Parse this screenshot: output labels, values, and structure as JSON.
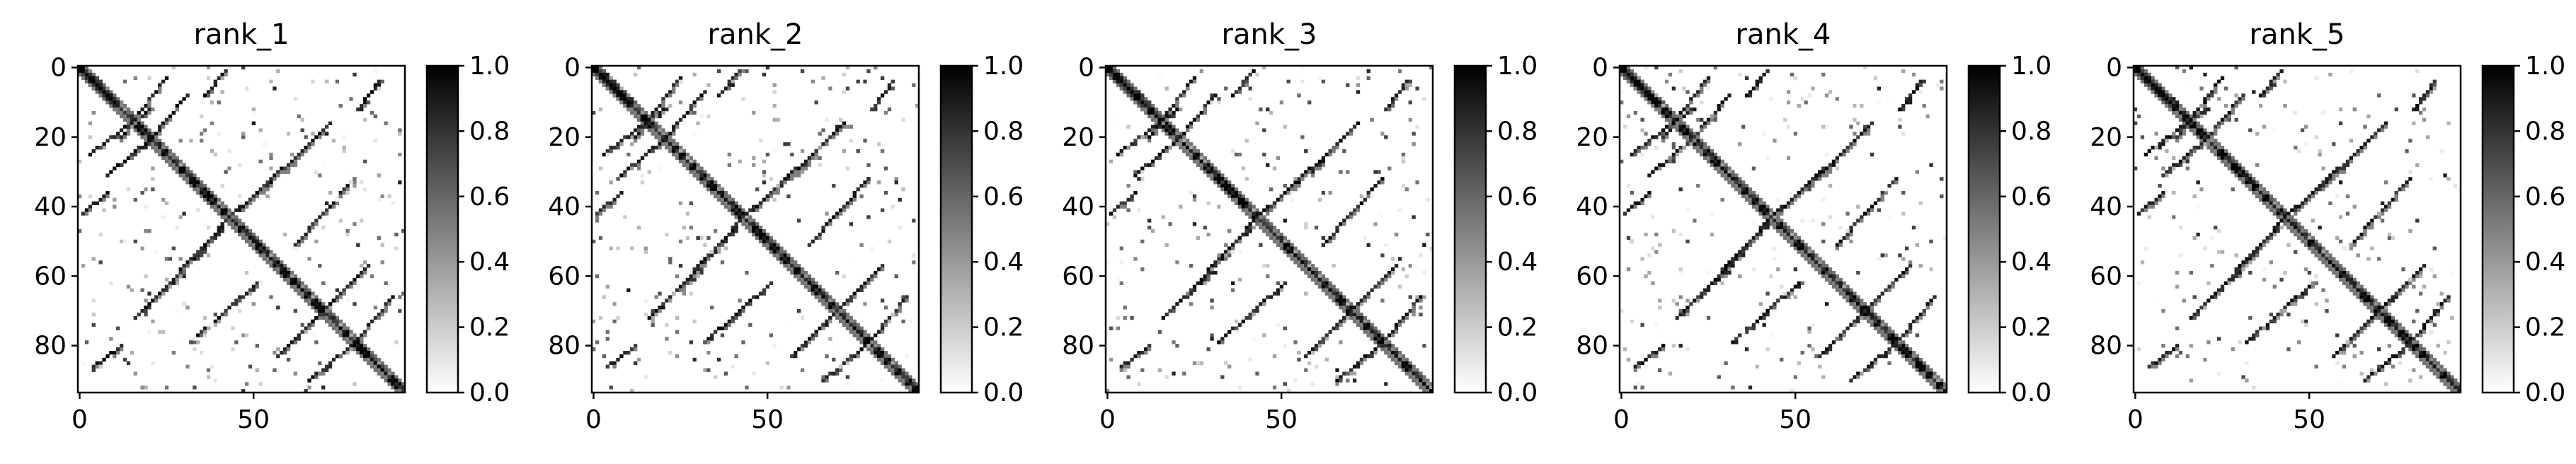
{
  "chart_data": [
    {
      "type": "heatmap",
      "title": "rank_1",
      "size": 94,
      "colormap": "gray_r",
      "clim": [
        0.0,
        1.0
      ],
      "xticks": [
        0,
        50
      ],
      "yticks": [
        0,
        20,
        40,
        60,
        80
      ],
      "colorbar_ticks": [
        "0.0",
        "0.2",
        "0.4",
        "0.6",
        "0.8",
        "1.0"
      ],
      "contacts": [
        {
          "from": [
            1,
            2
          ],
          "to": [
            20,
            20
          ]
        },
        {
          "from": [
            20,
            20
          ],
          "to": [
            94,
            94
          ]
        },
        {
          "from": [
            20,
            21
          ],
          "to": [
            31,
            8
          ]
        },
        {
          "from": [
            12,
            20
          ],
          "to": [
            25,
            3
          ]
        },
        {
          "from": [
            44,
            42
          ],
          "to": [
            62,
            27
          ]
        },
        {
          "from": [
            46,
            41
          ],
          "to": [
            72,
            16
          ]
        },
        {
          "from": [
            66,
            74
          ],
          "to": [
            83,
            57
          ]
        },
        {
          "from": [
            62,
            51
          ],
          "to": [
            79,
            32
          ]
        },
        {
          "from": [
            80,
            78
          ],
          "to": [
            90,
            66
          ]
        },
        {
          "from": [
            1,
            42
          ],
          "to": [
            8,
            36
          ]
        },
        {
          "from": [
            4,
            86
          ],
          "to": [
            12,
            80
          ]
        }
      ]
    },
    {
      "type": "heatmap",
      "title": "rank_2",
      "size": 94,
      "colormap": "gray_r",
      "clim": [
        0.0,
        1.0
      ],
      "xticks": [
        0,
        50
      ],
      "yticks": [
        0,
        20,
        40,
        60,
        80
      ],
      "colorbar_ticks": [
        "0.0",
        "0.2",
        "0.4",
        "0.6",
        "0.8",
        "1.0"
      ],
      "contacts": [
        {
          "from": [
            1,
            2
          ],
          "to": [
            20,
            20
          ]
        },
        {
          "from": [
            20,
            20
          ],
          "to": [
            94,
            94
          ]
        },
        {
          "from": [
            20,
            21
          ],
          "to": [
            31,
            8
          ]
        },
        {
          "from": [
            12,
            20
          ],
          "to": [
            25,
            3
          ]
        },
        {
          "from": [
            44,
            42
          ],
          "to": [
            62,
            27
          ]
        },
        {
          "from": [
            46,
            41
          ],
          "to": [
            72,
            16
          ]
        },
        {
          "from": [
            66,
            74
          ],
          "to": [
            83,
            57
          ]
        },
        {
          "from": [
            62,
            51
          ],
          "to": [
            79,
            32
          ]
        },
        {
          "from": [
            80,
            78
          ],
          "to": [
            90,
            66
          ]
        },
        {
          "from": [
            1,
            42
          ],
          "to": [
            8,
            36
          ]
        },
        {
          "from": [
            4,
            86
          ],
          "to": [
            12,
            80
          ]
        }
      ]
    },
    {
      "type": "heatmap",
      "title": "rank_3",
      "size": 94,
      "colormap": "gray_r",
      "clim": [
        0.0,
        1.0
      ],
      "xticks": [
        0,
        50
      ],
      "yticks": [
        0,
        20,
        40,
        60,
        80
      ],
      "colorbar_ticks": [
        "0.0",
        "0.2",
        "0.4",
        "0.6",
        "0.8",
        "1.0"
      ],
      "contacts": [
        {
          "from": [
            1,
            2
          ],
          "to": [
            20,
            20
          ]
        },
        {
          "from": [
            20,
            20
          ],
          "to": [
            94,
            94
          ]
        },
        {
          "from": [
            20,
            21
          ],
          "to": [
            31,
            8
          ]
        },
        {
          "from": [
            12,
            20
          ],
          "to": [
            25,
            3
          ]
        },
        {
          "from": [
            44,
            42
          ],
          "to": [
            62,
            27
          ]
        },
        {
          "from": [
            46,
            41
          ],
          "to": [
            72,
            16
          ]
        },
        {
          "from": [
            66,
            74
          ],
          "to": [
            83,
            57
          ]
        },
        {
          "from": [
            62,
            51
          ],
          "to": [
            79,
            32
          ]
        },
        {
          "from": [
            80,
            78
          ],
          "to": [
            90,
            66
          ]
        },
        {
          "from": [
            1,
            42
          ],
          "to": [
            8,
            36
          ]
        },
        {
          "from": [
            4,
            86
          ],
          "to": [
            12,
            80
          ]
        }
      ]
    },
    {
      "type": "heatmap",
      "title": "rank_4",
      "size": 94,
      "colormap": "gray_r",
      "clim": [
        0.0,
        1.0
      ],
      "xticks": [
        0,
        50
      ],
      "yticks": [
        0,
        20,
        40,
        60,
        80
      ],
      "colorbar_ticks": [
        "0.0",
        "0.2",
        "0.4",
        "0.6",
        "0.8",
        "1.0"
      ],
      "contacts": [
        {
          "from": [
            1,
            2
          ],
          "to": [
            20,
            20
          ]
        },
        {
          "from": [
            20,
            20
          ],
          "to": [
            94,
            94
          ]
        },
        {
          "from": [
            20,
            21
          ],
          "to": [
            31,
            8
          ]
        },
        {
          "from": [
            12,
            20
          ],
          "to": [
            25,
            3
          ]
        },
        {
          "from": [
            44,
            42
          ],
          "to": [
            62,
            27
          ]
        },
        {
          "from": [
            46,
            41
          ],
          "to": [
            72,
            16
          ]
        },
        {
          "from": [
            66,
            74
          ],
          "to": [
            83,
            57
          ]
        },
        {
          "from": [
            62,
            51
          ],
          "to": [
            79,
            32
          ]
        },
        {
          "from": [
            80,
            78
          ],
          "to": [
            90,
            66
          ]
        },
        {
          "from": [
            1,
            42
          ],
          "to": [
            8,
            36
          ]
        },
        {
          "from": [
            4,
            86
          ],
          "to": [
            12,
            80
          ]
        }
      ]
    },
    {
      "type": "heatmap",
      "title": "rank_5",
      "size": 94,
      "colormap": "gray_r",
      "clim": [
        0.0,
        1.0
      ],
      "xticks": [
        0,
        50
      ],
      "yticks": [
        0,
        20,
        40,
        60,
        80
      ],
      "colorbar_ticks": [
        "0.0",
        "0.2",
        "0.4",
        "0.6",
        "0.8",
        "1.0"
      ],
      "contacts": [
        {
          "from": [
            1,
            2
          ],
          "to": [
            20,
            20
          ]
        },
        {
          "from": [
            20,
            20
          ],
          "to": [
            94,
            94
          ]
        },
        {
          "from": [
            20,
            21
          ],
          "to": [
            31,
            8
          ]
        },
        {
          "from": [
            12,
            20
          ],
          "to": [
            25,
            3
          ]
        },
        {
          "from": [
            44,
            42
          ],
          "to": [
            62,
            27
          ]
        },
        {
          "from": [
            46,
            41
          ],
          "to": [
            72,
            16
          ]
        },
        {
          "from": [
            66,
            74
          ],
          "to": [
            83,
            57
          ]
        },
        {
          "from": [
            62,
            51
          ],
          "to": [
            79,
            32
          ]
        },
        {
          "from": [
            80,
            78
          ],
          "to": [
            90,
            66
          ]
        },
        {
          "from": [
            1,
            42
          ],
          "to": [
            8,
            36
          ]
        },
        {
          "from": [
            4,
            86
          ],
          "to": [
            12,
            80
          ]
        }
      ]
    }
  ]
}
